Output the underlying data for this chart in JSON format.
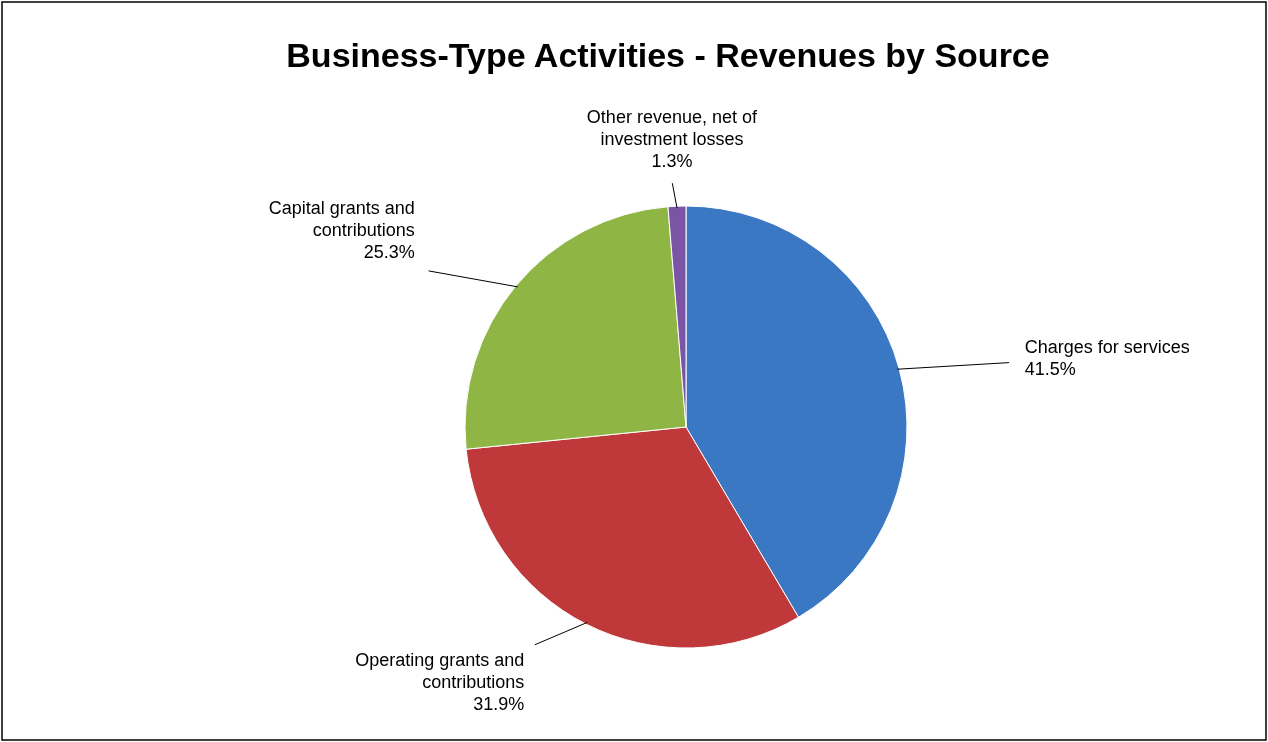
{
  "chart_data": {
    "type": "pie",
    "title": "Business-Type Activities - Revenues by Source",
    "categories": [
      "Charges for services",
      "Operating grants and contributions",
      "Capital grants and contributions",
      "Other revenue, net of investment losses"
    ],
    "values": [
      41.5,
      31.9,
      25.3,
      1.3
    ],
    "value_labels": [
      "41.5%",
      "31.9%",
      "25.3%",
      "1.3%"
    ],
    "colors": [
      "#3b78c4",
      "#c0393a",
      "#8fb544",
      "#7b54a6"
    ],
    "legend": false
  }
}
